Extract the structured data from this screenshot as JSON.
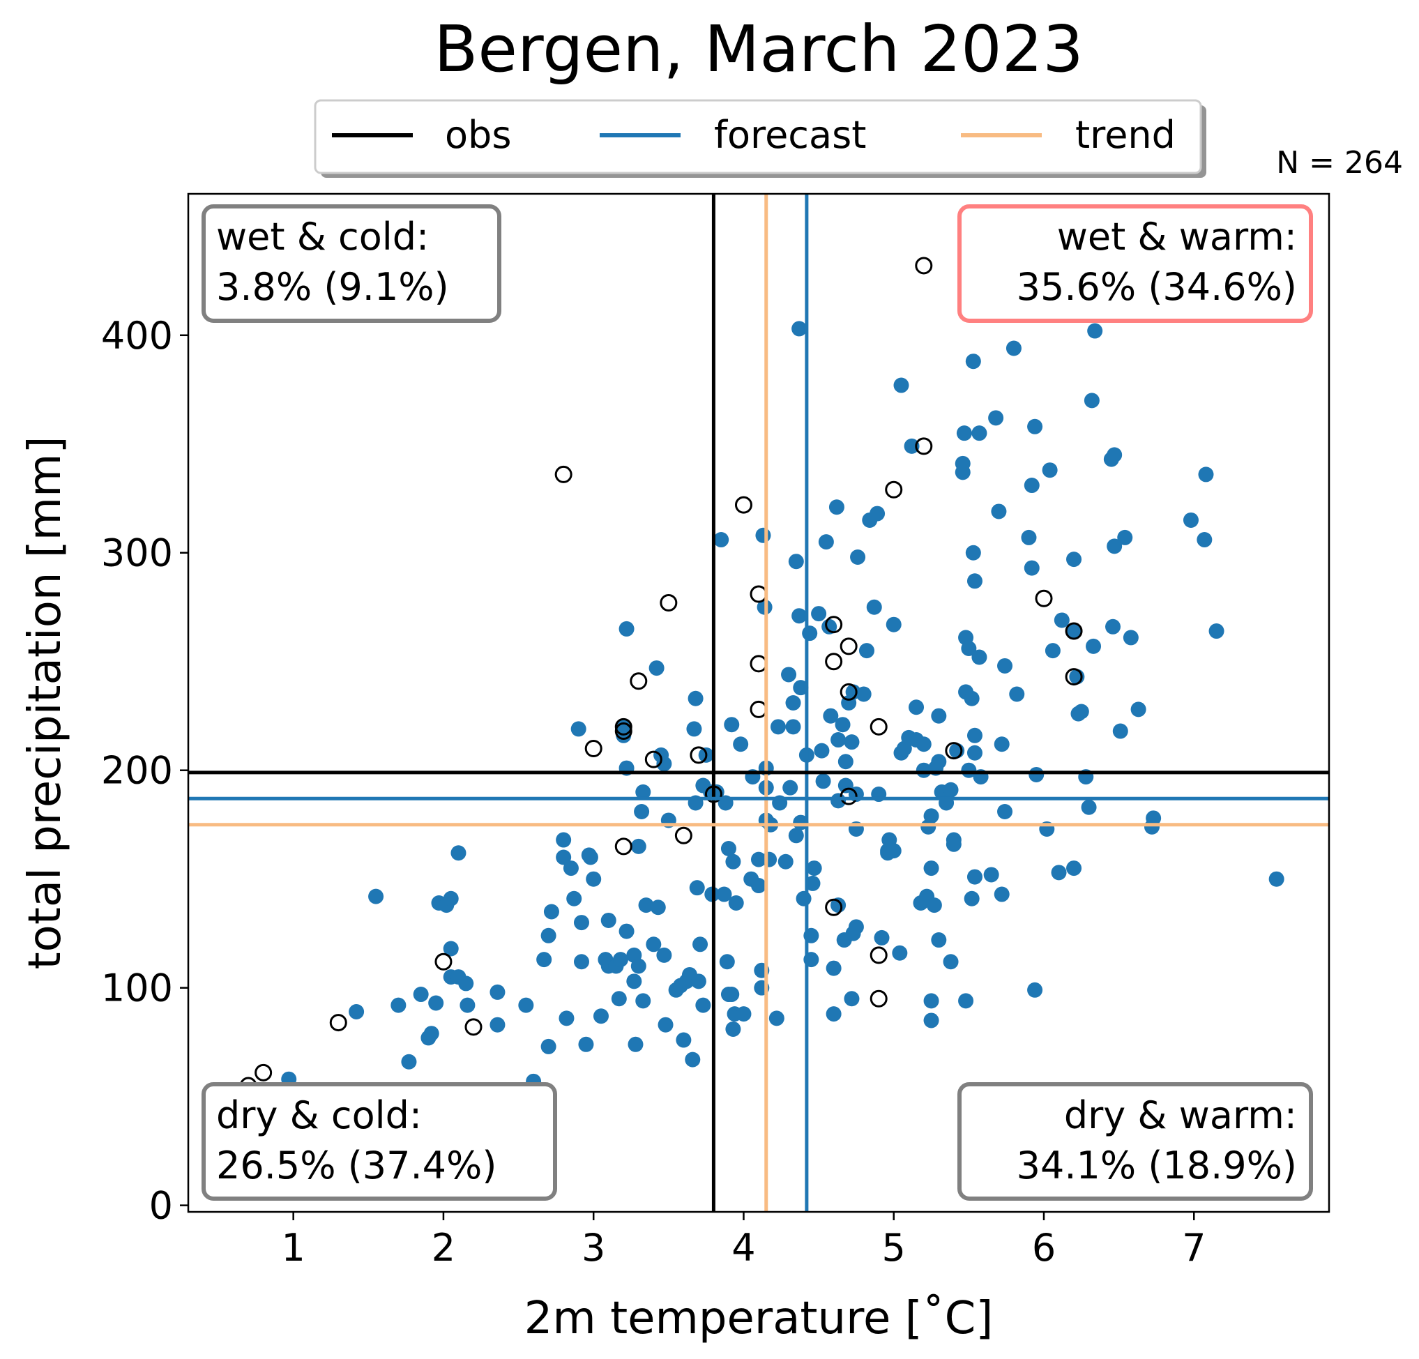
{
  "chart_data": {
    "type": "scatter",
    "title": "Bergen, March 2023",
    "xlabel": "2m temperature [˚C]",
    "ylabel": "total precipitation [mm]",
    "xlim": [
      0.3,
      7.9
    ],
    "ylim": [
      -3,
      465
    ],
    "xticks": [
      1,
      2,
      3,
      4,
      5,
      6,
      7
    ],
    "yticks": [
      0,
      100,
      200,
      300,
      400
    ],
    "n_label": "N = 264",
    "grid": false,
    "legend": {
      "placement": "top-center",
      "entries": [
        {
          "name": "obs",
          "color": "#000000"
        },
        {
          "name": "forecast",
          "color": "#1f77b4"
        },
        {
          "name": "trend",
          "color": "#f8bb82"
        }
      ]
    },
    "reference_lines": {
      "obs": {
        "x": 3.8,
        "y": 199,
        "color": "#000000"
      },
      "forecast": {
        "x": 4.42,
        "y": 187,
        "color": "#1f77b4"
      },
      "trend": {
        "x": 4.15,
        "y": 175,
        "color": "#f8bb82"
      }
    },
    "quadrant_labels": [
      {
        "line1": "wet & cold:",
        "line2": "3.8% (9.1%)",
        "position": "top-left",
        "border": "#808080"
      },
      {
        "line1": "wet & warm:",
        "line2": "35.6% (34.6%)",
        "position": "top-right",
        "border": "#ff8080"
      },
      {
        "line1": "dry & cold:",
        "line2": "26.5% (37.4%)",
        "position": "bottom-left",
        "border": "#808080"
      },
      {
        "line1": "dry & warm:",
        "line2": "34.1% (18.9%)",
        "position": "bottom-right",
        "border": "#808080"
      }
    ],
    "series": [
      {
        "name": "forecast",
        "marker": "filled-circle",
        "color": "#1f77b4",
        "points": [
          [
            0.65,
            47
          ],
          [
            0.97,
            58
          ],
          [
            1.42,
            89
          ],
          [
            1.55,
            142
          ],
          [
            1.7,
            92
          ],
          [
            1.77,
            66
          ],
          [
            1.85,
            97
          ],
          [
            1.9,
            77
          ],
          [
            1.92,
            79
          ],
          [
            1.95,
            93
          ],
          [
            1.97,
            139
          ],
          [
            2.0,
            45
          ],
          [
            2.02,
            138
          ],
          [
            2.05,
            141
          ],
          [
            2.05,
            118
          ],
          [
            2.05,
            105
          ],
          [
            2.1,
            105
          ],
          [
            2.1,
            162
          ],
          [
            2.15,
            102
          ],
          [
            2.16,
            92
          ],
          [
            2.36,
            98
          ],
          [
            2.36,
            83
          ],
          [
            2.55,
            92
          ],
          [
            2.6,
            57
          ],
          [
            2.67,
            113
          ],
          [
            2.7,
            124
          ],
          [
            2.7,
            73
          ],
          [
            2.72,
            135
          ],
          [
            2.8,
            168
          ],
          [
            2.8,
            160
          ],
          [
            2.82,
            86
          ],
          [
            2.85,
            155
          ],
          [
            2.87,
            141
          ],
          [
            2.9,
            219
          ],
          [
            2.92,
            130
          ],
          [
            2.92,
            112
          ],
          [
            2.95,
            74
          ],
          [
            2.97,
            161
          ],
          [
            2.98,
            160
          ],
          [
            3.0,
            150
          ],
          [
            3.05,
            87
          ],
          [
            3.08,
            113
          ],
          [
            3.1,
            131
          ],
          [
            3.1,
            110
          ],
          [
            3.15,
            110
          ],
          [
            3.17,
            95
          ],
          [
            3.18,
            113
          ],
          [
            3.2,
            216
          ],
          [
            3.2,
            220
          ],
          [
            3.22,
            265
          ],
          [
            3.22,
            201
          ],
          [
            3.22,
            126
          ],
          [
            3.27,
            103
          ],
          [
            3.27,
            115
          ],
          [
            3.28,
            74
          ],
          [
            3.3,
            110
          ],
          [
            3.3,
            165
          ],
          [
            3.32,
            181
          ],
          [
            3.33,
            190
          ],
          [
            3.33,
            94
          ],
          [
            3.35,
            138
          ],
          [
            3.4,
            120
          ],
          [
            3.42,
            247
          ],
          [
            3.43,
            137
          ],
          [
            3.45,
            207
          ],
          [
            3.47,
            203
          ],
          [
            3.47,
            115
          ],
          [
            3.48,
            83
          ],
          [
            3.5,
            177
          ],
          [
            3.55,
            99
          ],
          [
            3.58,
            101
          ],
          [
            3.6,
            76
          ],
          [
            3.62,
            103
          ],
          [
            3.64,
            106
          ],
          [
            3.66,
            67
          ],
          [
            3.67,
            219
          ],
          [
            3.68,
            233
          ],
          [
            3.68,
            185
          ],
          [
            3.69,
            146
          ],
          [
            3.7,
            103
          ],
          [
            3.71,
            120
          ],
          [
            3.73,
            193
          ],
          [
            3.73,
            92
          ],
          [
            3.75,
            207
          ],
          [
            3.78,
            190
          ],
          [
            3.79,
            143
          ],
          [
            3.82,
            190
          ],
          [
            3.85,
            306
          ],
          [
            3.87,
            143
          ],
          [
            3.88,
            185
          ],
          [
            3.89,
            112
          ],
          [
            3.9,
            164
          ],
          [
            3.9,
            97
          ],
          [
            3.92,
            221
          ],
          [
            3.92,
            97
          ],
          [
            3.93,
            81
          ],
          [
            3.93,
            158
          ],
          [
            3.94,
            88
          ],
          [
            3.95,
            139
          ],
          [
            3.98,
            212
          ],
          [
            4.0,
            88
          ],
          [
            4.05,
            150
          ],
          [
            4.06,
            197
          ],
          [
            4.1,
            159
          ],
          [
            4.1,
            147
          ],
          [
            4.12,
            100
          ],
          [
            4.12,
            108
          ],
          [
            4.13,
            308
          ],
          [
            4.14,
            275
          ],
          [
            4.15,
            201
          ],
          [
            4.15,
            192
          ],
          [
            4.15,
            177
          ],
          [
            4.17,
            159
          ],
          [
            4.18,
            175
          ],
          [
            4.22,
            86
          ],
          [
            4.23,
            220
          ],
          [
            4.24,
            185
          ],
          [
            4.28,
            158
          ],
          [
            4.3,
            244
          ],
          [
            4.31,
            192
          ],
          [
            4.33,
            220
          ],
          [
            4.33,
            231
          ],
          [
            4.35,
            296
          ],
          [
            4.35,
            170
          ],
          [
            4.37,
            403
          ],
          [
            4.37,
            271
          ],
          [
            4.38,
            238
          ],
          [
            4.38,
            176
          ],
          [
            4.4,
            141
          ],
          [
            4.42,
            207
          ],
          [
            4.44,
            263
          ],
          [
            4.45,
            124
          ],
          [
            4.45,
            113
          ],
          [
            4.46,
            148
          ],
          [
            4.47,
            155
          ],
          [
            4.5,
            272
          ],
          [
            4.52,
            209
          ],
          [
            4.53,
            195
          ],
          [
            4.55,
            305
          ],
          [
            4.57,
            266
          ],
          [
            4.58,
            225
          ],
          [
            4.6,
            88
          ],
          [
            4.6,
            109
          ],
          [
            4.62,
            321
          ],
          [
            4.63,
            214
          ],
          [
            4.63,
            186
          ],
          [
            4.63,
            138
          ],
          [
            4.66,
            221
          ],
          [
            4.67,
            122
          ],
          [
            4.68,
            204
          ],
          [
            4.68,
            193
          ],
          [
            4.7,
            231
          ],
          [
            4.72,
            95
          ],
          [
            4.72,
            213
          ],
          [
            4.73,
            236
          ],
          [
            4.73,
            125
          ],
          [
            4.75,
            128
          ],
          [
            4.75,
            173
          ],
          [
            4.75,
            189
          ],
          [
            4.76,
            298
          ],
          [
            4.8,
            235
          ],
          [
            4.82,
            255
          ],
          [
            4.84,
            315
          ],
          [
            4.87,
            275
          ],
          [
            4.89,
            318
          ],
          [
            4.9,
            189
          ],
          [
            4.92,
            123
          ],
          [
            4.96,
            162
          ],
          [
            4.96,
            163
          ],
          [
            4.97,
            168
          ],
          [
            5.0,
            267
          ],
          [
            5.0,
            163
          ],
          [
            5.04,
            116
          ],
          [
            5.05,
            377
          ],
          [
            5.05,
            208
          ],
          [
            5.07,
            210
          ],
          [
            5.1,
            215
          ],
          [
            5.12,
            349
          ],
          [
            5.15,
            229
          ],
          [
            5.15,
            214
          ],
          [
            5.18,
            139
          ],
          [
            5.2,
            212
          ],
          [
            5.2,
            200
          ],
          [
            5.22,
            142
          ],
          [
            5.23,
            174
          ],
          [
            5.25,
            85
          ],
          [
            5.25,
            94
          ],
          [
            5.25,
            179
          ],
          [
            5.25,
            155
          ],
          [
            5.27,
            138
          ],
          [
            5.28,
            201
          ],
          [
            5.3,
            122
          ],
          [
            5.3,
            204
          ],
          [
            5.3,
            225
          ],
          [
            5.32,
            190
          ],
          [
            5.35,
            185
          ],
          [
            5.38,
            112
          ],
          [
            5.38,
            191
          ],
          [
            5.4,
            168
          ],
          [
            5.4,
            166
          ],
          [
            5.42,
            209
          ],
          [
            5.46,
            337
          ],
          [
            5.46,
            341
          ],
          [
            5.47,
            355
          ],
          [
            5.48,
            261
          ],
          [
            5.48,
            236
          ],
          [
            5.48,
            94
          ],
          [
            5.5,
            256
          ],
          [
            5.5,
            200
          ],
          [
            5.52,
            233
          ],
          [
            5.52,
            141
          ],
          [
            5.53,
            388
          ],
          [
            5.53,
            300
          ],
          [
            5.54,
            287
          ],
          [
            5.54,
            216
          ],
          [
            5.54,
            208
          ],
          [
            5.54,
            151
          ],
          [
            5.57,
            355
          ],
          [
            5.57,
            252
          ],
          [
            5.58,
            197
          ],
          [
            5.65,
            152
          ],
          [
            5.68,
            362
          ],
          [
            5.7,
            319
          ],
          [
            5.72,
            212
          ],
          [
            5.72,
            143
          ],
          [
            5.74,
            248
          ],
          [
            5.74,
            181
          ],
          [
            5.8,
            394
          ],
          [
            5.82,
            235
          ],
          [
            5.9,
            307
          ],
          [
            5.92,
            331
          ],
          [
            5.92,
            293
          ],
          [
            5.94,
            358
          ],
          [
            5.94,
            99
          ],
          [
            5.95,
            198
          ],
          [
            6.02,
            173
          ],
          [
            6.04,
            338
          ],
          [
            6.06,
            255
          ],
          [
            6.1,
            153
          ],
          [
            6.12,
            269
          ],
          [
            6.2,
            155
          ],
          [
            6.2,
            297
          ],
          [
            6.2,
            264
          ],
          [
            6.22,
            243
          ],
          [
            6.23,
            226
          ],
          [
            6.25,
            227
          ],
          [
            6.28,
            197
          ],
          [
            6.3,
            183
          ],
          [
            6.32,
            370
          ],
          [
            6.33,
            257
          ],
          [
            6.34,
            402
          ],
          [
            6.45,
            343
          ],
          [
            6.46,
            266
          ],
          [
            6.47,
            303
          ],
          [
            6.47,
            345
          ],
          [
            6.51,
            218
          ],
          [
            6.54,
            307
          ],
          [
            6.58,
            261
          ],
          [
            6.63,
            228
          ],
          [
            6.72,
            174
          ],
          [
            6.73,
            178
          ],
          [
            6.98,
            315
          ],
          [
            7.07,
            306
          ],
          [
            7.08,
            336
          ],
          [
            7.15,
            264
          ],
          [
            7.55,
            150
          ]
        ]
      },
      {
        "name": "obs",
        "marker": "open-circle",
        "color": "#000000",
        "points": [
          [
            0.7,
            55
          ],
          [
            0.8,
            61
          ],
          [
            0.9,
            18
          ],
          [
            1.3,
            84
          ],
          [
            2.0,
            112
          ],
          [
            2.2,
            82
          ],
          [
            2.2,
            52
          ],
          [
            2.6,
            51
          ],
          [
            2.8,
            336
          ],
          [
            3.0,
            210
          ],
          [
            3.2,
            218
          ],
          [
            3.2,
            220
          ],
          [
            3.2,
            165
          ],
          [
            3.3,
            241
          ],
          [
            3.4,
            205
          ],
          [
            3.5,
            277
          ],
          [
            3.6,
            170
          ],
          [
            3.7,
            207
          ],
          [
            3.8,
            189
          ],
          [
            4.0,
            322
          ],
          [
            4.1,
            281
          ],
          [
            4.1,
            249
          ],
          [
            4.1,
            228
          ],
          [
            4.6,
            267
          ],
          [
            4.6,
            250
          ],
          [
            4.6,
            137
          ],
          [
            4.7,
            257
          ],
          [
            4.7,
            236
          ],
          [
            4.7,
            188
          ],
          [
            4.9,
            220
          ],
          [
            4.9,
            115
          ],
          [
            4.9,
            95
          ],
          [
            5.0,
            329
          ],
          [
            5.2,
            432
          ],
          [
            5.2,
            349
          ],
          [
            5.4,
            209
          ],
          [
            6.0,
            279
          ],
          [
            6.2,
            264
          ],
          [
            6.2,
            243
          ]
        ]
      }
    ]
  }
}
